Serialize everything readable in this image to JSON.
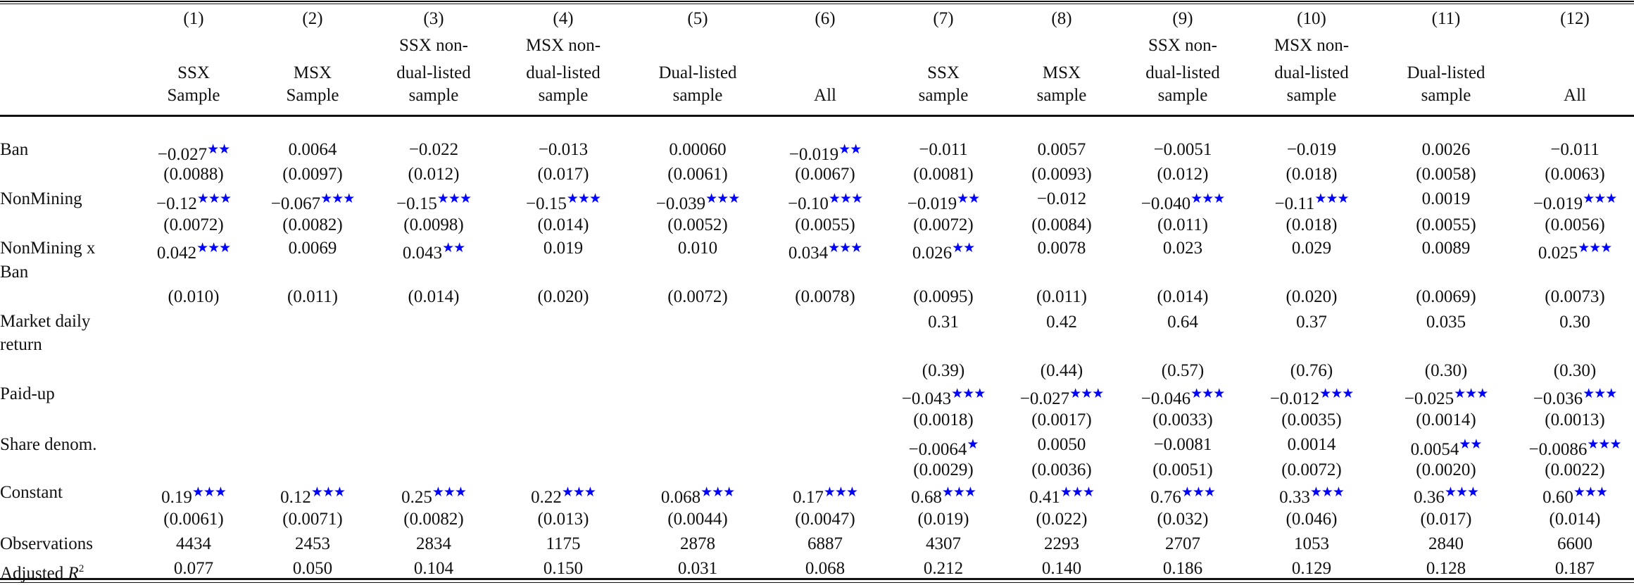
{
  "star_color": "#0000ff",
  "header": {
    "columns": [
      {
        "num": "(1)",
        "lines": [
          "SSX",
          "Sample"
        ]
      },
      {
        "num": "(2)",
        "lines": [
          "MSX",
          "Sample"
        ]
      },
      {
        "num": "(3)",
        "lines": [
          "SSX non-",
          "dual-listed",
          "sample"
        ]
      },
      {
        "num": "(4)",
        "lines": [
          "MSX non-",
          "dual-listed",
          "sample"
        ]
      },
      {
        "num": "(5)",
        "lines": [
          "Dual-listed",
          "sample"
        ]
      },
      {
        "num": "(6)",
        "lines": [
          "All"
        ]
      },
      {
        "num": "(7)",
        "lines": [
          "SSX",
          "sample"
        ]
      },
      {
        "num": "(8)",
        "lines": [
          "MSX",
          "sample"
        ]
      },
      {
        "num": "(9)",
        "lines": [
          "SSX non-",
          "dual-listed",
          "sample"
        ]
      },
      {
        "num": "(10)",
        "lines": [
          "MSX non-",
          "dual-listed",
          "sample"
        ]
      },
      {
        "num": "(11)",
        "lines": [
          "Dual-listed",
          "sample"
        ]
      },
      {
        "num": "(12)",
        "lines": [
          "All"
        ]
      }
    ]
  },
  "rows": [
    {
      "label": [
        "Ban"
      ],
      "coef": [
        [
          "−0.027",
          "★★"
        ],
        [
          "0.0064",
          ""
        ],
        [
          "−0.022",
          ""
        ],
        [
          "−0.013",
          ""
        ],
        [
          "0.00060",
          ""
        ],
        [
          "−0.019",
          "★★"
        ],
        [
          "−0.011",
          ""
        ],
        [
          "0.0057",
          ""
        ],
        [
          "−0.0051",
          ""
        ],
        [
          "−0.019",
          ""
        ],
        [
          "0.0026",
          ""
        ],
        [
          "−0.011",
          ""
        ]
      ],
      "se": [
        "(0.0088)",
        "(0.0097)",
        "(0.012)",
        "(0.017)",
        "(0.0061)",
        "(0.0067)",
        "(0.0081)",
        "(0.0093)",
        "(0.012)",
        "(0.018)",
        "(0.0058)",
        "(0.0063)"
      ]
    },
    {
      "label": [
        "NonMining"
      ],
      "coef": [
        [
          "−0.12",
          "★★★"
        ],
        [
          "−0.067",
          "★★★"
        ],
        [
          "−0.15",
          "★★★"
        ],
        [
          "−0.15",
          "★★★"
        ],
        [
          "−0.039",
          "★★★"
        ],
        [
          "−0.10",
          "★★★"
        ],
        [
          "−0.019",
          "★★"
        ],
        [
          "−0.012",
          ""
        ],
        [
          "−0.040",
          "★★★"
        ],
        [
          "−0.11",
          "★★★"
        ],
        [
          "0.0019",
          ""
        ],
        [
          "−0.019",
          "★★★"
        ]
      ],
      "se": [
        "(0.0072)",
        "(0.0082)",
        "(0.0098)",
        "(0.014)",
        "(0.0052)",
        "(0.0055)",
        "(0.0072)",
        "(0.0084)",
        "(0.011)",
        "(0.018)",
        "(0.0055)",
        "(0.0056)"
      ]
    },
    {
      "label": [
        "NonMining x",
        "Ban"
      ],
      "coef": [
        [
          "0.042",
          "★★★"
        ],
        [
          "0.0069",
          ""
        ],
        [
          "0.043",
          "★★"
        ],
        [
          "0.019",
          ""
        ],
        [
          "0.010",
          ""
        ],
        [
          "0.034",
          "★★★"
        ],
        [
          "0.026",
          "★★"
        ],
        [
          "0.0078",
          ""
        ],
        [
          "0.023",
          ""
        ],
        [
          "0.029",
          ""
        ],
        [
          "0.0089",
          ""
        ],
        [
          "0.025",
          "★★★"
        ]
      ],
      "se": [
        "(0.010)",
        "(0.011)",
        "(0.014)",
        "(0.020)",
        "(0.0072)",
        "(0.0078)",
        "(0.0095)",
        "(0.011)",
        "(0.014)",
        "(0.020)",
        "(0.0069)",
        "(0.0073)"
      ]
    },
    {
      "label": [
        "Market daily",
        "return"
      ],
      "coef": [
        null,
        null,
        null,
        null,
        null,
        null,
        [
          "0.31",
          ""
        ],
        [
          "0.42",
          ""
        ],
        [
          "0.64",
          ""
        ],
        [
          "0.37",
          ""
        ],
        [
          "0.035",
          ""
        ],
        [
          "0.30",
          ""
        ]
      ],
      "se": [
        null,
        null,
        null,
        null,
        null,
        null,
        "(0.39)",
        "(0.44)",
        "(0.57)",
        "(0.76)",
        "(0.30)",
        "(0.30)"
      ]
    },
    {
      "label": [
        "Paid-up"
      ],
      "coef": [
        null,
        null,
        null,
        null,
        null,
        null,
        [
          "−0.043",
          "★★★"
        ],
        [
          "−0.027",
          "★★★"
        ],
        [
          "−0.046",
          "★★★"
        ],
        [
          "−0.012",
          "★★★"
        ],
        [
          "−0.025",
          "★★★"
        ],
        [
          "−0.036",
          "★★★"
        ]
      ],
      "se": [
        null,
        null,
        null,
        null,
        null,
        null,
        "(0.0018)",
        "(0.0017)",
        "(0.0033)",
        "(0.0035)",
        "(0.0014)",
        "(0.0013)"
      ]
    },
    {
      "label": [
        "Share denom."
      ],
      "coef": [
        null,
        null,
        null,
        null,
        null,
        null,
        [
          "−0.0064",
          "★"
        ],
        [
          "0.0050",
          ""
        ],
        [
          "−0.0081",
          ""
        ],
        [
          "0.0014",
          ""
        ],
        [
          "0.0054",
          "★★"
        ],
        [
          "−0.0086",
          "★★★"
        ]
      ],
      "se": [
        null,
        null,
        null,
        null,
        null,
        null,
        "(0.0029)",
        "(0.0036)",
        "(0.0051)",
        "(0.0072)",
        "(0.0020)",
        "(0.0022)"
      ]
    },
    {
      "label": [
        "Constant"
      ],
      "coef": [
        [
          "0.19",
          "★★★"
        ],
        [
          "0.12",
          "★★★"
        ],
        [
          "0.25",
          "★★★"
        ],
        [
          "0.22",
          "★★★"
        ],
        [
          "0.068",
          "★★★"
        ],
        [
          "0.17",
          "★★★"
        ],
        [
          "0.68",
          "★★★"
        ],
        [
          "0.41",
          "★★★"
        ],
        [
          "0.76",
          "★★★"
        ],
        [
          "0.33",
          "★★★"
        ],
        [
          "0.36",
          "★★★"
        ],
        [
          "0.60",
          "★★★"
        ]
      ],
      "se": [
        "(0.0061)",
        "(0.0071)",
        "(0.0082)",
        "(0.013)",
        "(0.0044)",
        "(0.0047)",
        "(0.019)",
        "(0.022)",
        "(0.032)",
        "(0.046)",
        "(0.017)",
        "(0.014)"
      ]
    }
  ],
  "stats": [
    {
      "label": "Observations",
      "values": [
        "4434",
        "2453",
        "2834",
        "1175",
        "2878",
        "6887",
        "4307",
        "2293",
        "2707",
        "1053",
        "2840",
        "6600"
      ]
    },
    {
      "label": "Adjusted R",
      "sup": "2",
      "values": [
        "0.077",
        "0.050",
        "0.104",
        "0.150",
        "0.031",
        "0.068",
        "0.212",
        "0.140",
        "0.186",
        "0.129",
        "0.128",
        "0.187"
      ]
    }
  ]
}
